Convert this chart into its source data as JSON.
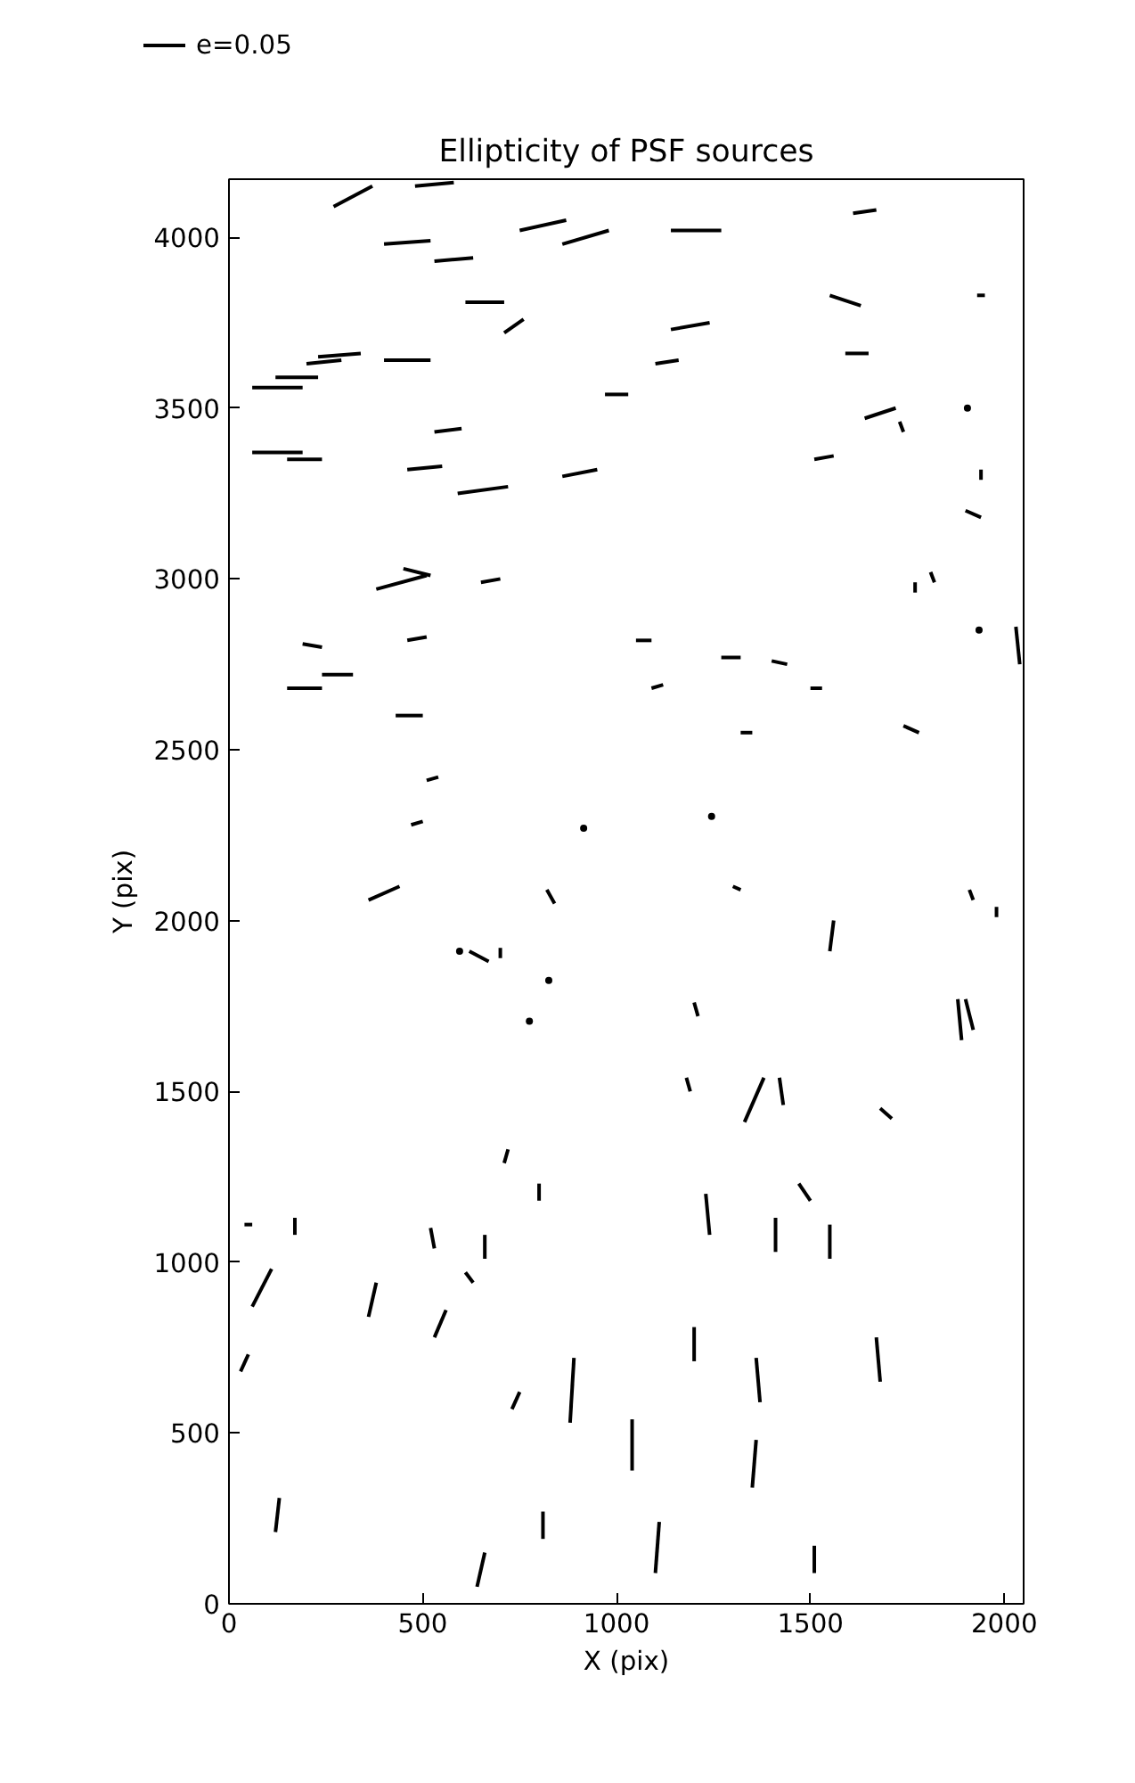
{
  "chart_data": {
    "type": "line",
    "title": "Ellipticity of PSF sources",
    "xlabel": "X (pix)",
    "ylabel": "Y (pix)",
    "annotations": [
      "e=0.05"
    ],
    "xlim": [
      0,
      2050
    ],
    "ylim": [
      0,
      4170
    ],
    "xticks": [
      0,
      500,
      1000,
      1500,
      2000
    ],
    "yticks": [
      0,
      500,
      1000,
      1500,
      2000,
      2500,
      3000,
      3500,
      4000
    ],
    "color": "#000000",
    "line_style": "solid",
    "grid": false,
    "series": [
      {
        "x": [
          270,
          370
        ],
        "values": [
          4090,
          4150
        ]
      },
      {
        "x": [
          480,
          580
        ],
        "values": [
          4150,
          4160
        ]
      },
      {
        "x": [
          400,
          520
        ],
        "values": [
          3980,
          3990
        ]
      },
      {
        "x": [
          530,
          630
        ],
        "values": [
          3930,
          3940
        ]
      },
      {
        "x": [
          750,
          870
        ],
        "values": [
          4020,
          4050
        ]
      },
      {
        "x": [
          860,
          980
        ],
        "values": [
          3980,
          4020
        ]
      },
      {
        "x": [
          1140,
          1270
        ],
        "values": [
          4020,
          4020
        ]
      },
      {
        "x": [
          1610,
          1670
        ],
        "values": [
          4070,
          4080
        ]
      },
      {
        "x": [
          610,
          710
        ],
        "values": [
          3810,
          3810
        ]
      },
      {
        "x": [
          710,
          760
        ],
        "values": [
          3720,
          3760
        ]
      },
      {
        "x": [
          1140,
          1240
        ],
        "values": [
          3730,
          3750
        ]
      },
      {
        "x": [
          1550,
          1630
        ],
        "values": [
          3830,
          3800
        ]
      },
      {
        "x": [
          1930,
          1950
        ],
        "values": [
          3830,
          3830
        ]
      },
      {
        "x": [
          230,
          340
        ],
        "values": [
          3650,
          3660
        ]
      },
      {
        "x": [
          200,
          290
        ],
        "values": [
          3630,
          3640
        ]
      },
      {
        "x": [
          120,
          230
        ],
        "values": [
          3590,
          3590
        ]
      },
      {
        "x": [
          60,
          190
        ],
        "values": [
          3560,
          3560
        ]
      },
      {
        "x": [
          400,
          520
        ],
        "values": [
          3640,
          3640
        ]
      },
      {
        "x": [
          1100,
          1160
        ],
        "values": [
          3630,
          3640
        ]
      },
      {
        "x": [
          1590,
          1650
        ],
        "values": [
          3660,
          3660
        ]
      },
      {
        "x": [
          970,
          1030
        ],
        "values": [
          3540,
          3540
        ]
      },
      {
        "x": [
          1640,
          1720
        ],
        "values": [
          3470,
          3500
        ]
      },
      {
        "type": "scatter",
        "marker": "circle",
        "x": [
          1905
        ],
        "values": [
          3500
        ]
      },
      {
        "x": [
          530,
          600
        ],
        "values": [
          3430,
          3440
        ]
      },
      {
        "x": [
          60,
          190
        ],
        "values": [
          3370,
          3370
        ]
      },
      {
        "x": [
          150,
          240
        ],
        "values": [
          3350,
          3350
        ]
      },
      {
        "x": [
          460,
          550
        ],
        "values": [
          3320,
          3330
        ]
      },
      {
        "x": [
          590,
          720
        ],
        "values": [
          3250,
          3270
        ]
      },
      {
        "x": [
          860,
          950
        ],
        "values": [
          3300,
          3320
        ]
      },
      {
        "x": [
          1510,
          1560
        ],
        "values": [
          3350,
          3360
        ]
      },
      {
        "x": [
          1730,
          1740
        ],
        "values": [
          3460,
          3430
        ]
      },
      {
        "x": [
          1940,
          1940
        ],
        "values": [
          3290,
          3320
        ]
      },
      {
        "x": [
          1900,
          1940
        ],
        "values": [
          3200,
          3180
        ]
      },
      {
        "x": [
          380,
          510
        ],
        "values": [
          2970,
          3010
        ]
      },
      {
        "x": [
          450,
          520
        ],
        "values": [
          3030,
          3010
        ]
      },
      {
        "x": [
          650,
          700
        ],
        "values": [
          2990,
          3000
        ]
      },
      {
        "x": [
          1770,
          1770
        ],
        "values": [
          2960,
          2990
        ]
      },
      {
        "x": [
          1810,
          1820
        ],
        "values": [
          3020,
          2990
        ]
      },
      {
        "type": "scatter",
        "marker": "circle",
        "x": [
          1935
        ],
        "values": [
          2850
        ]
      },
      {
        "x": [
          2030,
          2040
        ],
        "values": [
          2860,
          2750
        ]
      },
      {
        "x": [
          190,
          240
        ],
        "values": [
          2810,
          2800
        ]
      },
      {
        "x": [
          460,
          510
        ],
        "values": [
          2820,
          2830
        ]
      },
      {
        "x": [
          1050,
          1090
        ],
        "values": [
          2820,
          2820
        ]
      },
      {
        "x": [
          1270,
          1320
        ],
        "values": [
          2770,
          2770
        ]
      },
      {
        "x": [
          150,
          240
        ],
        "values": [
          2680,
          2680
        ]
      },
      {
        "x": [
          240,
          320
        ],
        "values": [
          2720,
          2720
        ]
      },
      {
        "x": [
          1400,
          1440
        ],
        "values": [
          2760,
          2750
        ]
      },
      {
        "x": [
          1090,
          1120
        ],
        "values": [
          2680,
          2690
        ]
      },
      {
        "x": [
          1500,
          1530
        ],
        "values": [
          2680,
          2680
        ]
      },
      {
        "x": [
          430,
          500
        ],
        "values": [
          2600,
          2600
        ]
      },
      {
        "x": [
          1320,
          1350
        ],
        "values": [
          2550,
          2550
        ]
      },
      {
        "x": [
          1740,
          1780
        ],
        "values": [
          2570,
          2550
        ]
      },
      {
        "x": [
          510,
          540
        ],
        "values": [
          2410,
          2420
        ]
      },
      {
        "x": [
          470,
          500
        ],
        "values": [
          2280,
          2290
        ]
      },
      {
        "type": "scatter",
        "marker": "circle",
        "x": [
          915
        ],
        "values": [
          2270
        ]
      },
      {
        "type": "scatter",
        "marker": "circle",
        "x": [
          1245
        ],
        "values": [
          2305
        ]
      },
      {
        "x": [
          1300,
          1320
        ],
        "values": [
          2100,
          2090
        ]
      },
      {
        "x": [
          360,
          440
        ],
        "values": [
          2060,
          2100
        ]
      },
      {
        "x": [
          820,
          840
        ],
        "values": [
          2090,
          2050
        ]
      },
      {
        "x": [
          1910,
          1920
        ],
        "values": [
          2090,
          2060
        ]
      },
      {
        "x": [
          1980,
          1980
        ],
        "values": [
          2040,
          2010
        ]
      },
      {
        "x": [
          1560,
          1550
        ],
        "values": [
          2000,
          1910
        ]
      },
      {
        "type": "scatter",
        "marker": "circle",
        "x": [
          595
        ],
        "values": [
          1910
        ]
      },
      {
        "x": [
          620,
          670
        ],
        "values": [
          1910,
          1880
        ]
      },
      {
        "x": [
          700,
          700
        ],
        "values": [
          1920,
          1890
        ]
      },
      {
        "type": "scatter",
        "marker": "circle",
        "x": [
          825
        ],
        "values": [
          1825
        ]
      },
      {
        "type": "scatter",
        "marker": "circle",
        "x": [
          775
        ],
        "values": [
          1705
        ]
      },
      {
        "x": [
          1200,
          1210
        ],
        "values": [
          1760,
          1720
        ]
      },
      {
        "x": [
          1880,
          1890
        ],
        "values": [
          1770,
          1650
        ]
      },
      {
        "x": [
          1900,
          1920
        ],
        "values": [
          1770,
          1680
        ]
      },
      {
        "x": [
          1180,
          1190
        ],
        "values": [
          1540,
          1500
        ]
      },
      {
        "x": [
          1330,
          1380
        ],
        "values": [
          1410,
          1540
        ]
      },
      {
        "x": [
          1420,
          1430
        ],
        "values": [
          1540,
          1460
        ]
      },
      {
        "x": [
          1680,
          1710
        ],
        "values": [
          1450,
          1420
        ]
      },
      {
        "x": [
          720,
          710
        ],
        "values": [
          1330,
          1290
        ]
      },
      {
        "x": [
          800,
          800
        ],
        "values": [
          1230,
          1180
        ]
      },
      {
        "x": [
          40,
          60
        ],
        "values": [
          1110,
          1110
        ]
      },
      {
        "x": [
          170,
          170
        ],
        "values": [
          1130,
          1080
        ]
      },
      {
        "x": [
          520,
          530
        ],
        "values": [
          1100,
          1040
        ]
      },
      {
        "x": [
          660,
          660
        ],
        "values": [
          1080,
          1010
        ]
      },
      {
        "x": [
          1230,
          1240
        ],
        "values": [
          1200,
          1080
        ]
      },
      {
        "x": [
          1410,
          1410
        ],
        "values": [
          1130,
          1030
        ]
      },
      {
        "x": [
          1470,
          1500
        ],
        "values": [
          1230,
          1180
        ]
      },
      {
        "x": [
          1550,
          1550
        ],
        "values": [
          1110,
          1010
        ]
      },
      {
        "x": [
          60,
          110
        ],
        "values": [
          870,
          980
        ]
      },
      {
        "x": [
          360,
          380
        ],
        "values": [
          840,
          940
        ]
      },
      {
        "x": [
          610,
          630
        ],
        "values": [
          970,
          940
        ]
      },
      {
        "x": [
          530,
          560
        ],
        "values": [
          780,
          860
        ]
      },
      {
        "x": [
          30,
          50
        ],
        "values": [
          680,
          730
        ]
      },
      {
        "x": [
          1200,
          1200
        ],
        "values": [
          810,
          710
        ]
      },
      {
        "x": [
          1360,
          1370
        ],
        "values": [
          720,
          590
        ]
      },
      {
        "x": [
          1670,
          1680
        ],
        "values": [
          780,
          650
        ]
      },
      {
        "x": [
          890,
          880
        ],
        "values": [
          720,
          530
        ]
      },
      {
        "x": [
          730,
          750
        ],
        "values": [
          570,
          620
        ]
      },
      {
        "x": [
          1040,
          1040
        ],
        "values": [
          390,
          540
        ]
      },
      {
        "x": [
          1350,
          1360
        ],
        "values": [
          340,
          480
        ]
      },
      {
        "x": [
          120,
          130
        ],
        "values": [
          210,
          310
        ]
      },
      {
        "x": [
          810,
          810
        ],
        "values": [
          270,
          190
        ]
      },
      {
        "x": [
          1100,
          1110
        ],
        "values": [
          90,
          240
        ]
      },
      {
        "x": [
          640,
          660
        ],
        "values": [
          50,
          150
        ]
      },
      {
        "x": [
          1510,
          1510
        ],
        "values": [
          170,
          90
        ]
      }
    ]
  }
}
